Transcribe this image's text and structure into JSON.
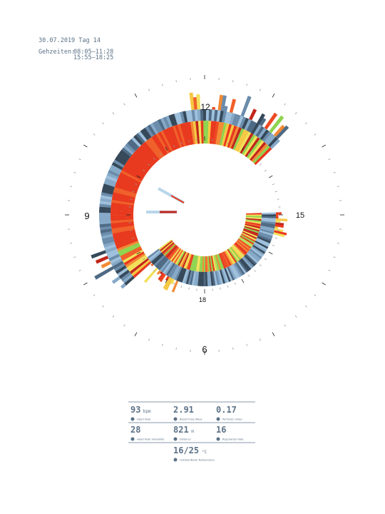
{
  "header": {
    "date": "30.07.2019 Tag 14",
    "label": "Gehzeiten:",
    "times": [
      "08:05–11:28",
      "15:55–18:25"
    ]
  },
  "dial": {
    "top": "12",
    "right": "15",
    "left": "9",
    "bottom": "6",
    "inner_bottom": "18"
  },
  "stats": [
    {
      "value": "93",
      "unit": "bpm",
      "label": "Heart Rate"
    },
    {
      "value": "2.91",
      "label": "Blood Pulse Wave"
    },
    {
      "value": "0.17",
      "label": "Perfusion Index"
    },
    {
      "value": "28",
      "label": "Heart Rate Variability"
    },
    {
      "value": "821",
      "unit": "m",
      "label": "Distance"
    },
    {
      "value": "16",
      "label": "Respiration Rate"
    },
    {
      "value": "16/25",
      "unit": "°C",
      "label": "Outdoor/Body Temperature"
    }
  ]
}
